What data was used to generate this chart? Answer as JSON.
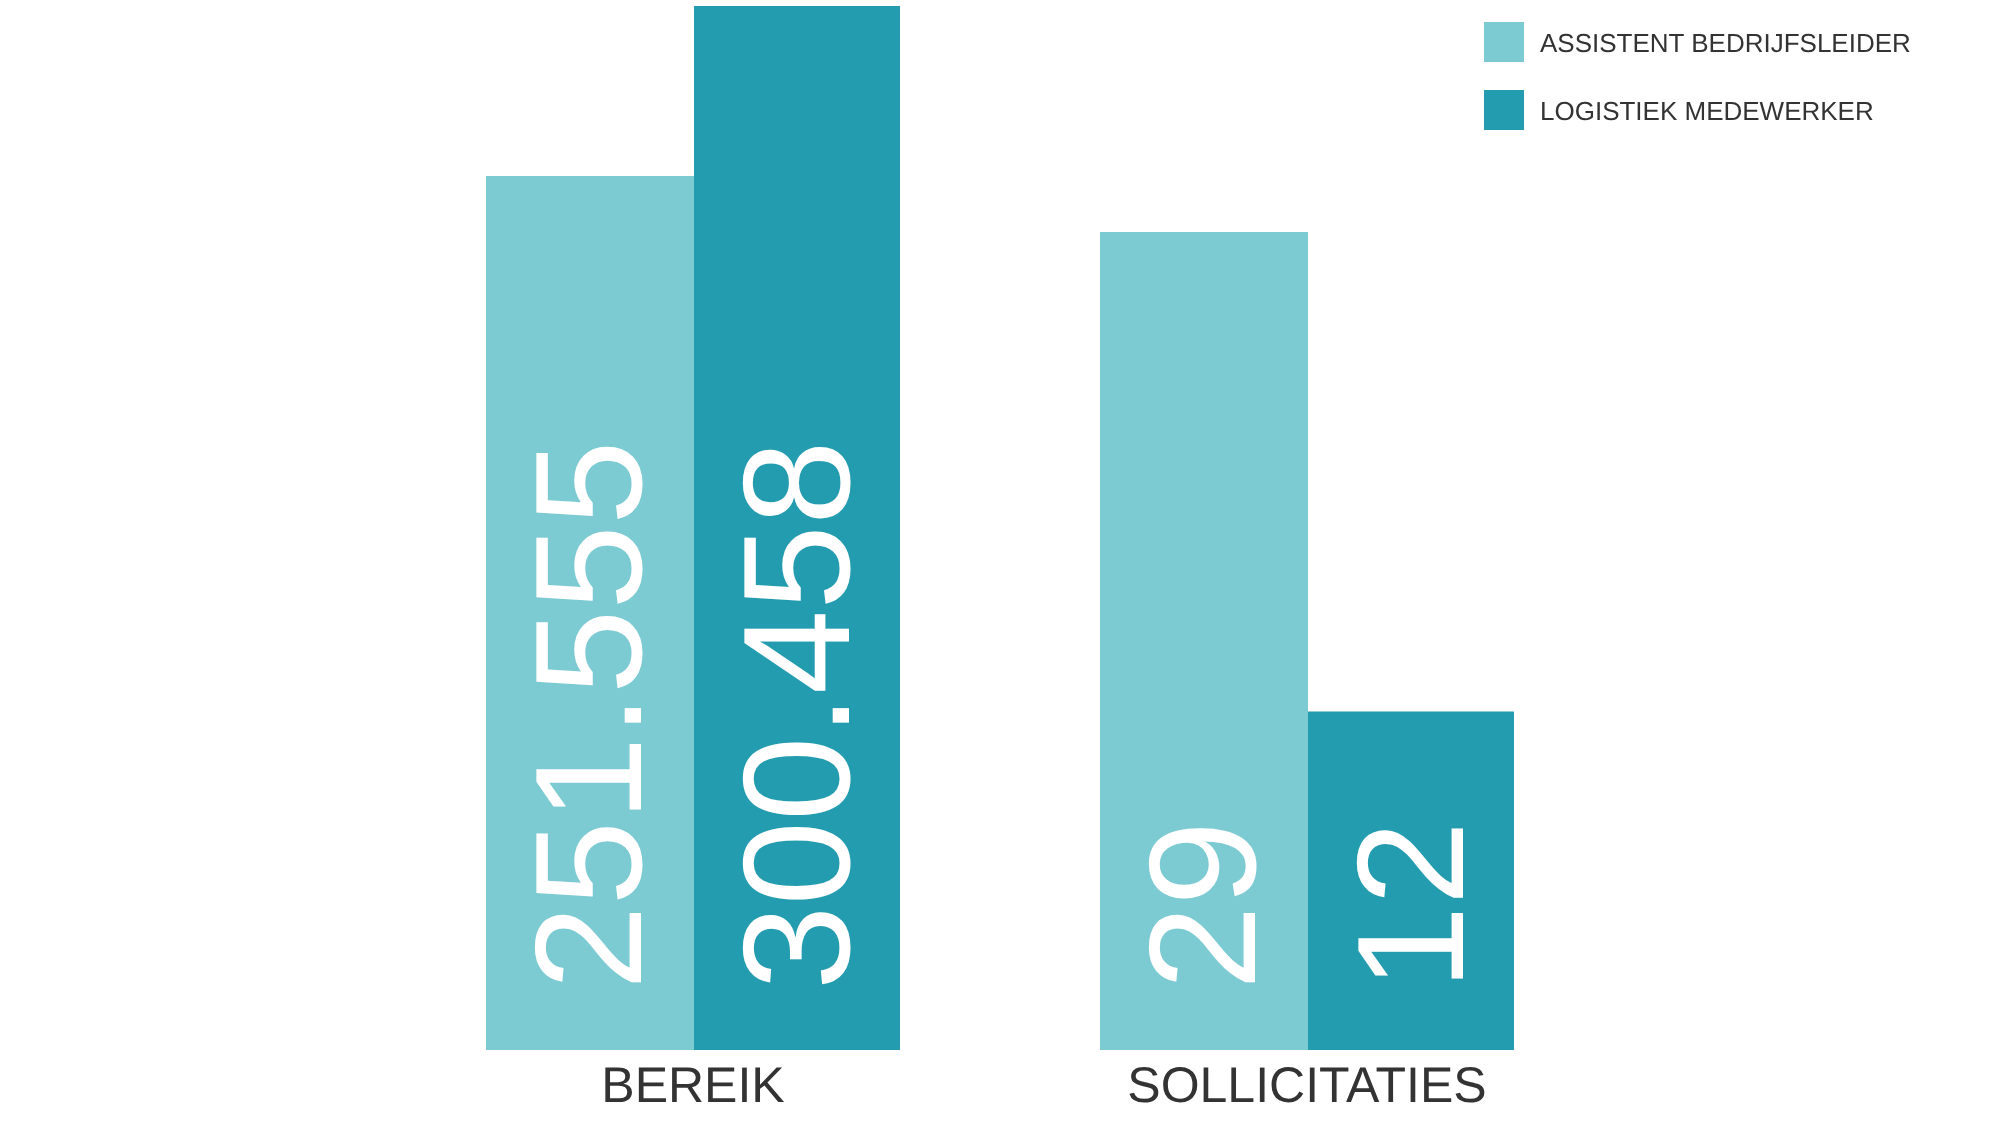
{
  "chart_data": [
    {
      "type": "bar",
      "categories": [
        "BEREIK"
      ],
      "series": [
        {
          "color": "#7ccad2",
          "values": [
            251555
          ],
          "value_labels": [
            "251.555"
          ]
        },
        {
          "color": "#249cb0",
          "values": [
            300458
          ],
          "value_labels": [
            "300.458"
          ]
        }
      ]
    },
    {
      "type": "bar",
      "categories": [
        "SOLLICITATIES"
      ],
      "legend": "top right",
      "series": [
        {
          "name": "ASSISTENT BEDRIJFSLEIDER",
          "color": "#7ccad2",
          "values": [
            29
          ],
          "value_labels": [
            "29"
          ]
        },
        {
          "name": "LOGISTIEK MEDEWERKER",
          "color": "#249cb0",
          "values": [
            12
          ],
          "value_labels": [
            "12"
          ]
        }
      ]
    }
  ]
}
